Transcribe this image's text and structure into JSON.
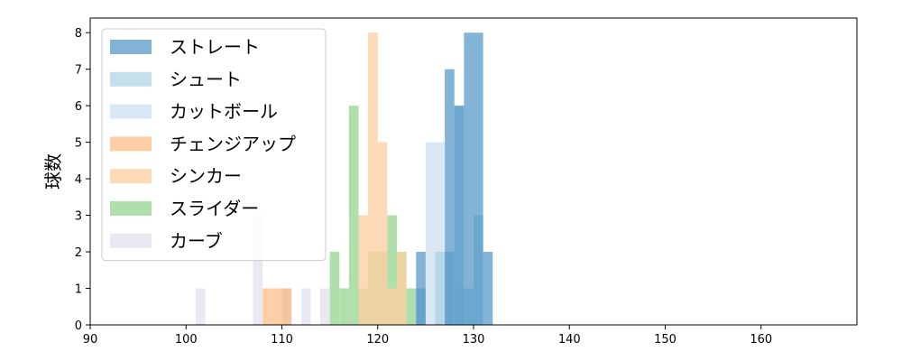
{
  "chart_data": {
    "type": "histogram",
    "xlabel": "",
    "ylabel": "球数",
    "xlim": [
      90,
      170
    ],
    "ylim": [
      0,
      8.4
    ],
    "xticks": [
      90,
      100,
      110,
      120,
      130,
      140,
      150,
      160
    ],
    "yticks": [
      0,
      1,
      2,
      3,
      4,
      5,
      6,
      7,
      8
    ],
    "legend_position": "top-left",
    "grid": false,
    "series": [
      {
        "name": "カーブ",
        "color": "#dadaeb",
        "opacity": 0.6,
        "bars": [
          [
            101,
            102,
            1
          ],
          [
            107,
            108,
            3
          ],
          [
            110,
            111,
            1
          ],
          [
            112,
            113,
            1
          ],
          [
            114,
            115,
            1
          ]
        ]
      },
      {
        "name": "スライダー",
        "color": "#a1d99b",
        "opacity": 0.85,
        "bars": [
          [
            115,
            116,
            2
          ],
          [
            116,
            117,
            1
          ],
          [
            117,
            118,
            6
          ],
          [
            118,
            119,
            1
          ],
          [
            119,
            120,
            2
          ],
          [
            120,
            121,
            2
          ],
          [
            121,
            122,
            3
          ],
          [
            122,
            123,
            2
          ],
          [
            123,
            124,
            1
          ]
        ]
      },
      {
        "name": "シンカー",
        "color": "#fdd0a2",
        "opacity": 0.8,
        "bars": [
          [
            118,
            119,
            3
          ],
          [
            119,
            120,
            8
          ],
          [
            120,
            121,
            5
          ],
          [
            121,
            122,
            1
          ],
          [
            122,
            123,
            2
          ]
        ]
      },
      {
        "name": "チェンジアップ",
        "color": "#fdae6b",
        "opacity": 0.6,
        "bars": [
          [
            108,
            109,
            1
          ],
          [
            109,
            111,
            1
          ]
        ]
      },
      {
        "name": "カットボール",
        "color": "#c6dbef",
        "opacity": 0.65,
        "bars": [
          [
            124,
            125,
            1
          ],
          [
            125,
            127,
            5
          ],
          [
            127,
            128,
            2
          ],
          [
            128,
            129,
            1
          ]
        ]
      },
      {
        "name": "シュート",
        "color": "#9ecae1",
        "opacity": 0.6,
        "bars": [
          [
            124,
            125,
            1
          ],
          [
            126,
            127,
            2
          ],
          [
            127,
            128,
            2
          ],
          [
            128,
            129,
            6
          ],
          [
            129,
            130,
            1
          ],
          [
            130,
            131,
            3
          ]
        ]
      },
      {
        "name": "ストレート",
        "color": "#3182bd",
        "opacity": 0.6,
        "bars": [
          [
            124,
            125,
            2
          ],
          [
            127,
            128,
            7
          ],
          [
            128,
            129,
            6
          ],
          [
            129,
            131,
            8
          ],
          [
            131,
            132,
            2
          ]
        ]
      }
    ],
    "legend_order": [
      "ストレート",
      "シュート",
      "カットボール",
      "チェンジアップ",
      "シンカー",
      "スライダー",
      "カーブ"
    ]
  }
}
